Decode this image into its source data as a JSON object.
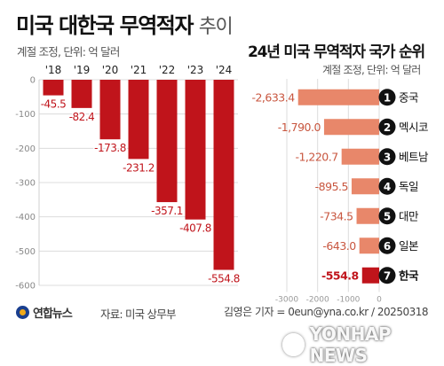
{
  "header": {
    "title": "미국 대한국 무역적자",
    "title_suffix": "추이",
    "unit": "계절 조정, 단위: 억 달러"
  },
  "right_header": {
    "title": "24년 미국 무역적자 국가 순위",
    "unit": "계절 조정, 단위: 억 달러"
  },
  "chart_data": [
    {
      "type": "bar",
      "title": "미국 대한국 무역적자 추이",
      "categories": [
        "'18",
        "'19",
        "'20",
        "'21",
        "'22",
        "'23",
        "'24"
      ],
      "values": [
        -45.5,
        -82.4,
        -173.8,
        -231.2,
        -357.1,
        -407.8,
        -554.8
      ],
      "value_labels": [
        "-45.5",
        "-82.4",
        "-173.8",
        "-231.2",
        "-357.1",
        "-407.8",
        "-554.8"
      ],
      "ylim": [
        -600,
        0
      ],
      "yticks": [
        0,
        -100,
        -200,
        -300,
        -400,
        -500,
        -600
      ],
      "ytick_labels": [
        "0",
        "-100",
        "-200",
        "-300",
        "-400",
        "-500",
        "-600"
      ],
      "grid": true,
      "color": "#c0141b"
    },
    {
      "type": "bar",
      "orientation": "horizontal",
      "title": "24년 미국 무역적자 국가 순위",
      "categories": [
        "중국",
        "멕시코",
        "베트남",
        "독일",
        "대만",
        "일본",
        "한국"
      ],
      "ranks": [
        "1",
        "2",
        "3",
        "4",
        "5",
        "6",
        "7"
      ],
      "values": [
        -2633.4,
        -1790.0,
        -1220.7,
        -895.5,
        -734.5,
        -643.0,
        -554.8
      ],
      "value_labels": [
        "-2,633.4",
        "-1,790.0",
        "-1,220.7",
        "-895.5",
        "-734.5",
        "-643.0",
        "-554.8"
      ],
      "xlim": [
        -3000,
        0
      ],
      "xticks": [
        -3000,
        -2000,
        -1000,
        0
      ],
      "xtick_labels": [
        "-3000",
        "-2000",
        "-1000",
        "0"
      ],
      "highlight": "한국",
      "color": "#e8876a",
      "highlight_color": "#c0141b"
    }
  ],
  "footer": {
    "logo_text": "연합뉴스",
    "source": "자료: 미국 상무부",
    "credit": "김영은 기자 = 0eun@yna.co.kr / 20250318",
    "watermark": "YONHAP NEWS"
  },
  "icons": {
    "logo": "yonhap-logo-icon",
    "watermark": "yonhap-watermark-icon"
  }
}
